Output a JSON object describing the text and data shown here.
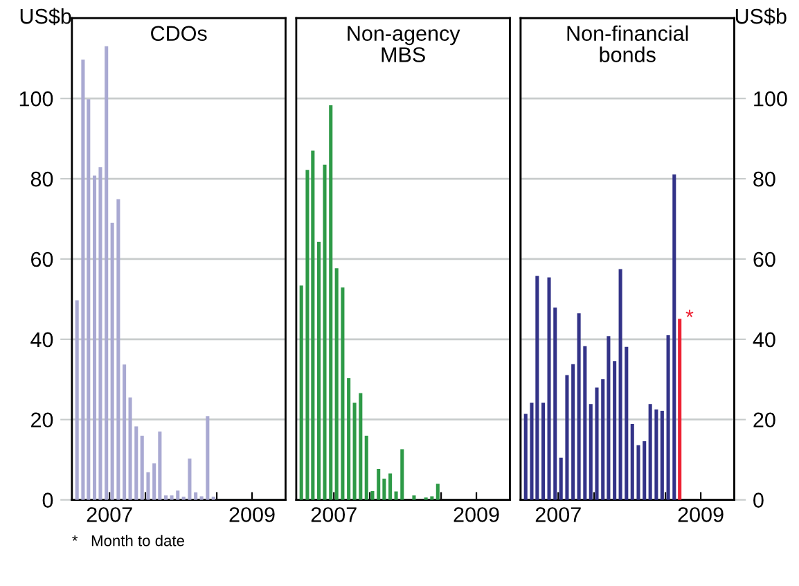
{
  "chart_data": [
    {
      "type": "bar",
      "title": "CDOs",
      "ylabel": "US$b",
      "x": [
        "2007-01",
        "2007-02",
        "2007-03",
        "2007-04",
        "2007-05",
        "2007-06",
        "2007-07",
        "2007-08",
        "2007-09",
        "2007-10",
        "2007-11",
        "2007-12",
        "2008-01",
        "2008-02",
        "2008-03",
        "2008-04",
        "2008-05",
        "2008-06",
        "2008-07",
        "2008-08",
        "2008-09",
        "2008-10",
        "2008-11",
        "2008-12"
      ],
      "series": [
        {
          "color": "#a9a9d2",
          "values": [
            49.7,
            109.7,
            99.8,
            80.8,
            82.9,
            113,
            69,
            74.9,
            33.7,
            25.5,
            18.3,
            16,
            6.9,
            9.1,
            17,
            1.1,
            1.1,
            2.3,
            0.8,
            10.3,
            1.9,
            0.9,
            20.8,
            0.8
          ]
        }
      ],
      "xlim": [
        "2006-12-20",
        "2009-12-20"
      ],
      "xticks": [
        {
          "value": "2007-07-01",
          "label": "2007"
        },
        {
          "value": "2008-01-01",
          "label": null
        },
        {
          "value": "2009-01-01",
          "label": null
        },
        {
          "value": "2009-07-01",
          "label": "2009"
        }
      ],
      "ylim": [
        0,
        120
      ],
      "yticks": [
        0,
        20,
        40,
        60,
        80,
        100
      ],
      "grid": "y"
    },
    {
      "type": "bar",
      "title": "Non-agency\nMBS",
      "x": [
        "2007-01",
        "2007-02",
        "2007-03",
        "2007-04",
        "2007-05",
        "2007-06",
        "2007-07",
        "2007-08",
        "2007-09",
        "2007-10",
        "2007-11",
        "2007-12",
        "2008-01",
        "2008-02",
        "2008-03",
        "2008-04",
        "2008-05",
        "2008-06",
        "2008-08",
        "2008-10",
        "2008-11",
        "2008-12"
      ],
      "series": [
        {
          "color": "#2e9a47",
          "values": [
            53.4,
            82.2,
            87,
            64.3,
            83.5,
            98.3,
            57.7,
            52.9,
            30.3,
            24.2,
            26.6,
            16,
            2.2,
            7.7,
            5.3,
            6.6,
            2.1,
            12.6,
            1.1,
            0.6,
            0.9,
            4
          ]
        }
      ],
      "xlim": [
        "2006-12-20",
        "2009-12-20"
      ],
      "xticks": [
        {
          "value": "2007-07-01",
          "label": "2007"
        },
        {
          "value": "2008-01-01",
          "label": null
        },
        {
          "value": "2009-01-01",
          "label": null
        },
        {
          "value": "2009-07-01",
          "label": "2009"
        }
      ],
      "ylim": [
        0,
        120
      ],
      "yticks": [
        0,
        20,
        40,
        60,
        80,
        100
      ],
      "tick_labels": "x",
      "grid": "y"
    },
    {
      "type": "bar",
      "title": "Non-financial\nbonds",
      "y2label": "US$b",
      "x": [
        "2007-01",
        "2007-02",
        "2007-03",
        "2007-04",
        "2007-05",
        "2007-06",
        "2007-07",
        "2007-08",
        "2007-09",
        "2007-10",
        "2007-11",
        "2007-12",
        "2008-01",
        "2008-02",
        "2008-03",
        "2008-04",
        "2008-05",
        "2008-06",
        "2008-07",
        "2008-08",
        "2008-09",
        "2008-10",
        "2008-11",
        "2008-12",
        "2009-01",
        "2009-02",
        "2009-03"
      ],
      "series": [
        {
          "axis": "y2",
          "colors": [
            "#333388",
            "#333388",
            "#333388",
            "#333388",
            "#333388",
            "#333388",
            "#333388",
            "#333388",
            "#333388",
            "#333388",
            "#333388",
            "#333388",
            "#333388",
            "#333388",
            "#333388",
            "#333388",
            "#333388",
            "#333388",
            "#333388",
            "#333388",
            "#333388",
            "#333388",
            "#333388",
            "#333388",
            "#333388",
            "#333388",
            "#ee2233"
          ],
          "values": [
            21.4,
            24.2,
            55.8,
            24.2,
            55.4,
            47.9,
            10.5,
            31.1,
            33.8,
            46.5,
            38.3,
            23.9,
            28,
            30.1,
            40.8,
            34.6,
            57.5,
            38.1,
            18.9,
            13.6,
            14.6,
            23.9,
            22.5,
            22.2,
            41,
            81.1,
            45.1
          ]
        }
      ],
      "xlim": [
        "2006-12-20",
        "2009-12-20"
      ],
      "xticks": [
        {
          "value": "2007-07-01",
          "label": "2007"
        },
        {
          "value": "2008-01-01",
          "label": null
        },
        {
          "value": "2009-01-01",
          "label": null
        },
        {
          "value": "2009-07-01",
          "label": "2009"
        }
      ],
      "y2lim": [
        0,
        120
      ],
      "y2ticks": [
        0,
        20,
        40,
        60,
        80,
        100
      ],
      "grid": "y",
      "annotations": [
        "*",
        "*   Month to date"
      ]
    }
  ]
}
